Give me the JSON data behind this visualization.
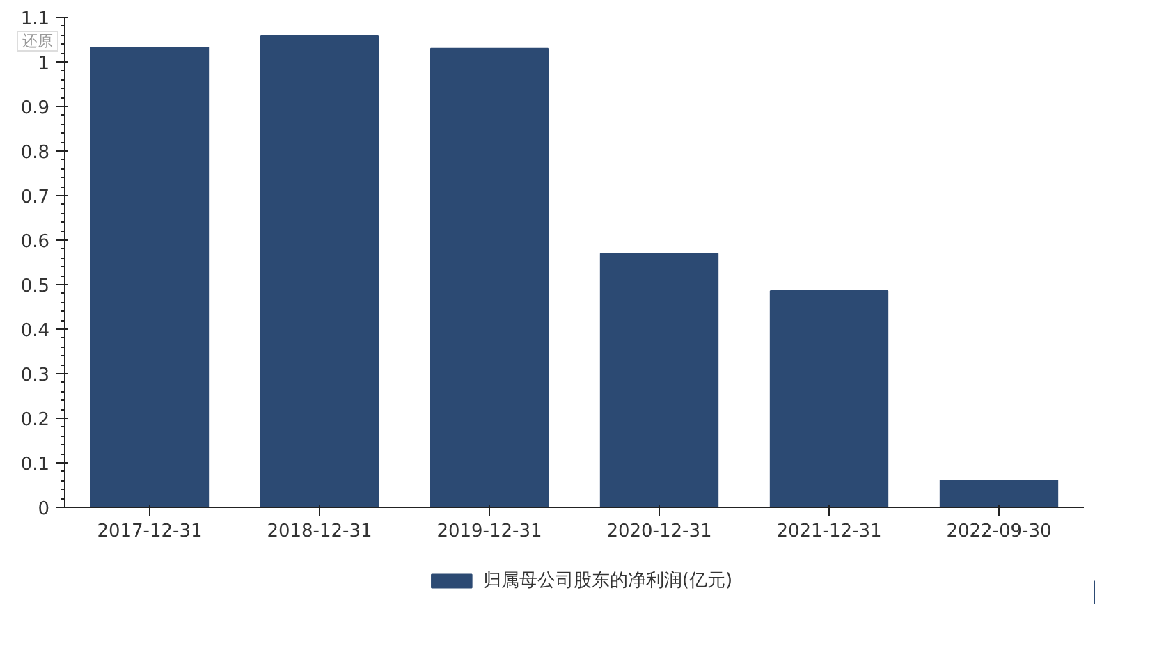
{
  "chart_data": {
    "type": "bar",
    "categories": [
      "2017-12-31",
      "2018-12-31",
      "2019-12-31",
      "2020-12-31",
      "2021-12-31",
      "2022-09-30"
    ],
    "series": [
      {
        "name": "归属母公司股东的净利润(亿元)",
        "color": "#2c4a73",
        "values": [
          1.033,
          1.058,
          1.03,
          0.57,
          0.486,
          0.061
        ]
      }
    ],
    "ylim": [
      0,
      1.1
    ],
    "yticks": [
      0,
      0.1,
      0.2,
      0.3,
      0.4,
      0.5,
      0.6,
      0.7,
      0.8,
      0.9,
      1,
      1.1
    ],
    "legend": "bottom",
    "annotations": [
      "还原"
    ]
  }
}
